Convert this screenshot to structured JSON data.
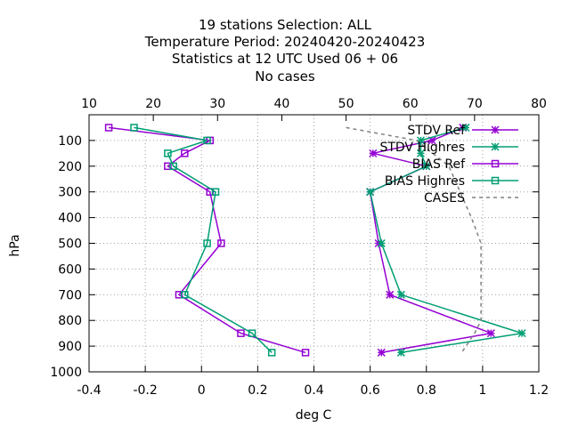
{
  "chart_data": {
    "type": "line",
    "title_lines": [
      "19 stations Selection: ALL",
      "Temperature  Period: 20240420-20240423",
      "Statistics at 12 UTC  Used  06 + 06",
      "No cases"
    ],
    "xlabel": "deg C",
    "ylabel": "hPa",
    "xlim": [
      -0.4,
      1.2
    ],
    "x2lim": [
      10,
      80
    ],
    "ylim": [
      1000,
      0
    ],
    "x_ticks": [
      "-0.4",
      "-0.2",
      "0",
      "0.2",
      "0.4",
      "0.6",
      "0.8",
      "1",
      "1.2"
    ],
    "x2_ticks": [
      "10",
      "20",
      "30",
      "40",
      "50",
      "60",
      "70",
      "80"
    ],
    "y_ticks": [
      "100",
      "200",
      "300",
      "400",
      "500",
      "600",
      "700",
      "800",
      "900",
      "1000"
    ],
    "grid": true,
    "legend_position": "top-right",
    "series": [
      {
        "name": "STDV Ref",
        "color": "#9400d3",
        "marker": "star",
        "levels": [
          50,
          100,
          150,
          200,
          300,
          500,
          700,
          850,
          925
        ],
        "values": [
          0.93,
          0.82,
          0.61,
          0.8,
          0.6,
          0.63,
          0.67,
          1.03,
          0.64
        ]
      },
      {
        "name": "STDV Highres",
        "color": "#009e73",
        "marker": "star",
        "levels": [
          50,
          100,
          150,
          200,
          300,
          500,
          700,
          850,
          925
        ],
        "values": [
          0.94,
          0.78,
          0.78,
          0.8,
          0.6,
          0.64,
          0.71,
          1.14,
          0.71
        ]
      },
      {
        "name": "BIAS Ref",
        "color": "#9400d3",
        "marker": "square",
        "levels": [
          50,
          100,
          150,
          200,
          300,
          500,
          700,
          850,
          925
        ],
        "values": [
          -0.33,
          0.03,
          -0.06,
          -0.12,
          0.03,
          0.07,
          -0.08,
          0.14,
          0.37
        ]
      },
      {
        "name": "BIAS Highres",
        "color": "#009e73",
        "marker": "square",
        "levels": [
          50,
          100,
          150,
          200,
          300,
          500,
          700,
          850,
          925
        ],
        "values": [
          -0.24,
          0.02,
          -0.12,
          -0.1,
          0.05,
          0.02,
          -0.06,
          0.18,
          0.25
        ]
      },
      {
        "name": "CASES",
        "color": "#808080",
        "marker": "none",
        "dashed": true,
        "axis": "x2",
        "levels": [
          50,
          100,
          200,
          400,
          500,
          600,
          800,
          850,
          925
        ],
        "values": [
          50,
          61,
          66,
          69.5,
          71,
          71,
          71,
          70,
          68
        ]
      }
    ]
  }
}
